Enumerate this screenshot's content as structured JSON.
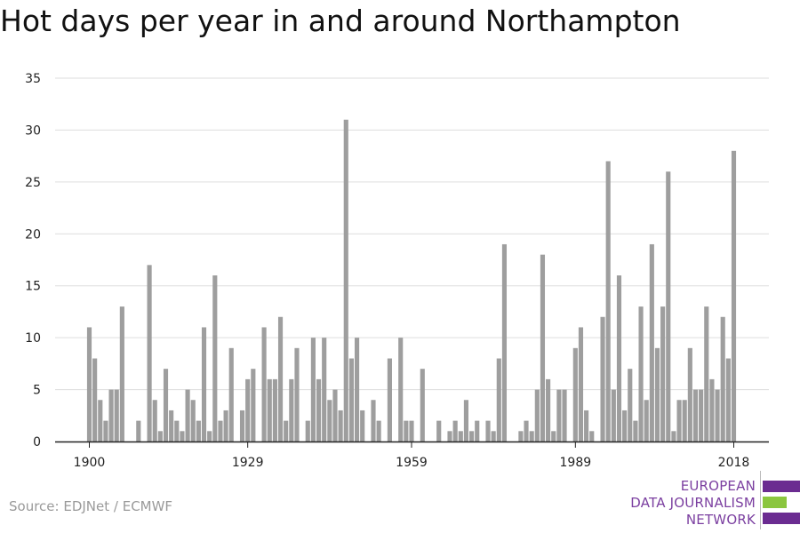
{
  "title": "Hot days per year in and around Northampton",
  "source": "Source: EDJNet / ECMWF",
  "logo": {
    "lines": [
      "EUROPEAN",
      "DATA JOURNALISM",
      "NETWORK"
    ],
    "colors": {
      "text": "#7b3fa0",
      "bar_purple": "#6b2c91",
      "bar_green": "#8bc63f"
    }
  },
  "colors": {
    "bar": "#9e9e9e",
    "grid": "#dddddd",
    "axis": "#222222"
  },
  "chart_data": {
    "type": "bar",
    "title": "Hot days per year in and around Northampton",
    "xlabel": "",
    "ylabel": "",
    "x_ticks": [
      "1900",
      "1929",
      "1959",
      "1989",
      "2018"
    ],
    "y_ticks": [
      "0",
      "5",
      "10",
      "15",
      "20",
      "25",
      "30",
      "35"
    ],
    "ylim": [
      0,
      35
    ],
    "grid": true,
    "categories": [
      1900,
      1901,
      1902,
      1903,
      1904,
      1905,
      1906,
      1907,
      1908,
      1909,
      1910,
      1911,
      1912,
      1913,
      1914,
      1915,
      1916,
      1917,
      1918,
      1919,
      1920,
      1921,
      1922,
      1923,
      1924,
      1925,
      1926,
      1927,
      1928,
      1929,
      1930,
      1931,
      1932,
      1933,
      1934,
      1935,
      1936,
      1937,
      1938,
      1939,
      1940,
      1941,
      1942,
      1943,
      1944,
      1945,
      1946,
      1947,
      1948,
      1949,
      1950,
      1951,
      1952,
      1953,
      1954,
      1955,
      1956,
      1957,
      1958,
      1959,
      1960,
      1961,
      1962,
      1963,
      1964,
      1965,
      1966,
      1967,
      1968,
      1969,
      1970,
      1971,
      1972,
      1973,
      1974,
      1975,
      1976,
      1977,
      1978,
      1979,
      1980,
      1981,
      1982,
      1983,
      1984,
      1985,
      1986,
      1987,
      1988,
      1989,
      1990,
      1991,
      1992,
      1993,
      1994,
      1995,
      1996,
      1997,
      1998,
      1999,
      2000,
      2001,
      2002,
      2003,
      2004,
      2005,
      2006,
      2007,
      2008,
      2009,
      2010,
      2011,
      2012,
      2013,
      2014,
      2015,
      2016,
      2017,
      2018
    ],
    "values": [
      11,
      8,
      4,
      2,
      5,
      5,
      13,
      0,
      0,
      2,
      0,
      17,
      4,
      1,
      7,
      3,
      2,
      1,
      5,
      4,
      2,
      11,
      1,
      16,
      2,
      3,
      9,
      0,
      3,
      6,
      7,
      0,
      11,
      6,
      6,
      12,
      2,
      6,
      9,
      0,
      2,
      10,
      6,
      10,
      4,
      5,
      3,
      31,
      8,
      10,
      3,
      0,
      4,
      2,
      0,
      8,
      0,
      10,
      2,
      2,
      0,
      7,
      0,
      0,
      2,
      0,
      1,
      2,
      1,
      4,
      1,
      2,
      0,
      2,
      1,
      8,
      19,
      0,
      0,
      1,
      2,
      1,
      5,
      18,
      6,
      1,
      5,
      5,
      0,
      9,
      11,
      3,
      1,
      0,
      12,
      27,
      5,
      16,
      3,
      7,
      2,
      13,
      4,
      19,
      9,
      13,
      26,
      1,
      4,
      4,
      9,
      5,
      5,
      13,
      6,
      5,
      12,
      8,
      28
    ]
  }
}
